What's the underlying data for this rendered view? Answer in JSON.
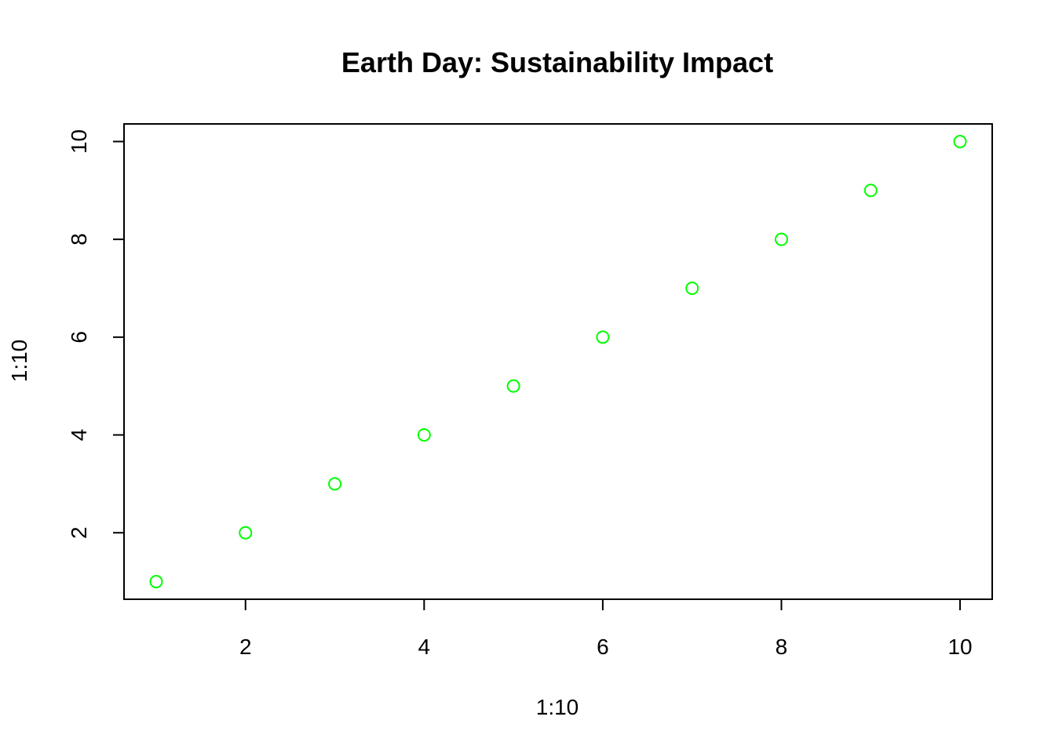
{
  "chart_data": {
    "type": "scatter",
    "title": "Earth Day: Sustainability Impact",
    "xlabel": "1:10",
    "ylabel": "1:10",
    "x": [
      1,
      2,
      3,
      4,
      5,
      6,
      7,
      8,
      9,
      10
    ],
    "y": [
      1,
      2,
      3,
      4,
      5,
      6,
      7,
      8,
      9,
      10
    ],
    "xlim": [
      0.64,
      10.36
    ],
    "ylim": [
      0.64,
      10.36
    ],
    "xticks": [
      2,
      4,
      6,
      8,
      10
    ],
    "yticks": [
      2,
      4,
      6,
      8,
      10
    ],
    "point_color": "#00ff00",
    "point_shape": "open-circle",
    "grid": false,
    "legend": "none"
  }
}
